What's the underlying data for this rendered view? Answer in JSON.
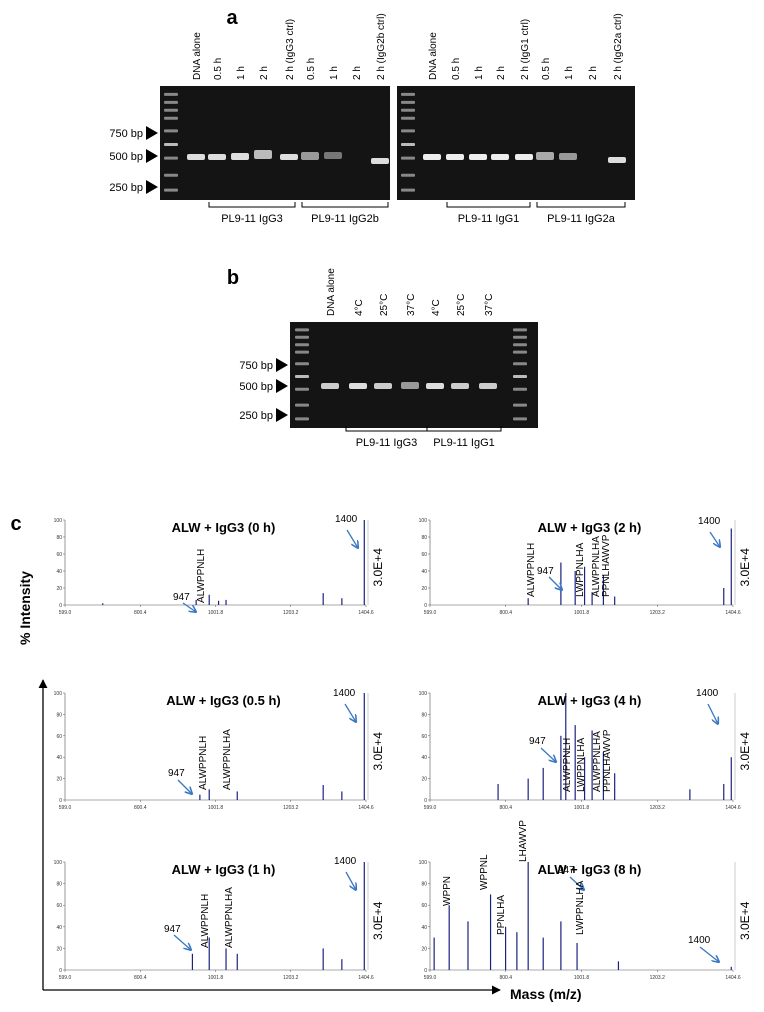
{
  "panel_a": {
    "label": "a",
    "size_markers": [
      "750 bp",
      "500 bp",
      "250 bp"
    ],
    "gels": [
      {
        "lanes": [
          "DNA alone",
          "0.5 h",
          "1 h",
          "2 h",
          "2 h (IgG3 ctrl)",
          "0.5 h",
          "1 h",
          "2 h",
          "2 h (IgG2b ctrl)"
        ],
        "groups": [
          "PL9-11  IgG3",
          "PL9-11  IgG2b"
        ]
      },
      {
        "lanes": [
          "DNA alone",
          "0.5 h",
          "1 h",
          "2 h",
          "2 h (IgG1 ctrl)",
          "0.5 h",
          "1 h",
          "2 h",
          "2 h (IgG2a ctrl)"
        ],
        "groups": [
          "PL9-11  IgG1",
          "PL9-11  IgG2a"
        ]
      }
    ]
  },
  "panel_b": {
    "label": "b",
    "size_markers": [
      "750 bp",
      "500 bp",
      "250 bp"
    ],
    "lanes": [
      "DNA alone",
      "4°C",
      "25°C",
      "37°C",
      "4°C",
      "25°C",
      "37°C"
    ],
    "groups": [
      "PL9-11  IgG3",
      "PL9-11  IgG1"
    ]
  },
  "panel_c": {
    "label": "c",
    "y_label": "% Intensity",
    "x_label": "Mass (m/z)",
    "spectra": [
      {
        "title": "ALW + IgG3 (0 h)",
        "scale": "3.0E+4",
        "annotations": [
          "1400",
          "947",
          "ALWPPNLH"
        ],
        "xlim": [
          599,
          1404.6
        ],
        "ylim": [
          0,
          100
        ],
        "xticks": [
          {
            "value": 599,
            "label": "599.0"
          },
          800.4,
          1001.8,
          1203.2,
          1404.6
        ],
        "yticks": [
          0,
          20,
          40,
          60,
          80,
          100
        ],
        "x": [
          700,
          950,
          985,
          1010,
          1030,
          1290,
          1340,
          1400
        ],
        "values": [
          2,
          6,
          12,
          5,
          6,
          14,
          8,
          100
        ]
      },
      {
        "title": "ALW + IgG3 (2 h)",
        "scale": "3.0E+4",
        "annotations": [
          "1400",
          "ALWPPNLH",
          "947",
          "LWPPNLHA",
          "ALWPPNLHA",
          "PPNLHAWVP"
        ],
        "xlim": [
          599,
          1404.6
        ],
        "ylim": [
          0,
          100
        ],
        "xticks": [
          {
            "value": 599,
            "label": "599.0"
          },
          800.4,
          1001.8,
          1203.2,
          1404.6
        ],
        "yticks": [
          0,
          20,
          40,
          60,
          80,
          100
        ],
        "x": [
          860,
          947,
          985,
          1010,
          1030,
          1060,
          1090,
          1380,
          1400
        ],
        "values": [
          8,
          50,
          40,
          45,
          15,
          35,
          10,
          20,
          90
        ]
      },
      {
        "title": "ALW + IgG3 (0.5 h)",
        "scale": "3.0E+4",
        "annotations": [
          "1400",
          "947",
          "ALWPPNLH",
          "ALWPPNLHA"
        ],
        "xlim": [
          599,
          1404.6
        ],
        "ylim": [
          0,
          100
        ],
        "xticks": [
          {
            "value": 599,
            "label": "599.0"
          },
          800.4,
          1001.8,
          1203.2,
          1404.6
        ],
        "yticks": [
          0,
          20,
          40,
          60,
          80,
          100
        ],
        "x": [
          960,
          985,
          1060,
          1290,
          1340,
          1400
        ],
        "values": [
          5,
          10,
          8,
          14,
          8,
          100
        ]
      },
      {
        "title": "ALW + IgG3 (4 h)",
        "scale": "3.0E+4",
        "annotations": [
          "1400",
          "947",
          "ALWPPNLH",
          "LWPPNLHA",
          "ALWPPNLHA",
          "PPNLHAWVP"
        ],
        "xlim": [
          599,
          1404.6
        ],
        "ylim": [
          0,
          100
        ],
        "xticks": [
          {
            "value": 599,
            "label": "599.0"
          },
          800.4,
          1001.8,
          1203.2,
          1404.6
        ],
        "yticks": [
          0,
          20,
          40,
          60,
          80,
          100
        ],
        "x": [
          780,
          860,
          900,
          947,
          960,
          985,
          1010,
          1030,
          1060,
          1090,
          1290,
          1380,
          1400
        ],
        "values": [
          15,
          20,
          30,
          60,
          100,
          70,
          40,
          65,
          45,
          25,
          10,
          15,
          40
        ]
      },
      {
        "title": "ALW + IgG3 (1 h)",
        "scale": "3.0E+4",
        "annotations": [
          "1400",
          "947",
          "ALWPPNLH",
          "ALWPPNLHA"
        ],
        "xlim": [
          599,
          1404.6
        ],
        "ylim": [
          0,
          100
        ],
        "xticks": [
          {
            "value": 599,
            "label": "599.0"
          },
          800.4,
          1001.8,
          1203.2,
          1404.6
        ],
        "yticks": [
          0,
          20,
          40,
          60,
          80,
          100
        ],
        "x": [
          940,
          985,
          1030,
          1060,
          1290,
          1340,
          1400
        ],
        "values": [
          15,
          30,
          20,
          15,
          20,
          10,
          100
        ]
      },
      {
        "title": "ALW + IgG3 (8 h)",
        "scale": "3.0E+4",
        "annotations": [
          "WPPN",
          "WPPNL",
          "PPNLHA",
          "LHAWVP",
          "947",
          "LWPPNLHA",
          "1400"
        ],
        "xlim": [
          599,
          1404.6
        ],
        "ylim": [
          0,
          100
        ],
        "xticks": [
          {
            "value": 599,
            "label": "599.0"
          },
          800.4,
          1001.8,
          1203.2,
          1404.6
        ],
        "yticks": [
          0,
          20,
          40,
          60,
          80,
          100
        ],
        "x": [
          610,
          650,
          700,
          760,
          800,
          830,
          860,
          900,
          947,
          990,
          1100,
          1400
        ],
        "values": [
          30,
          60,
          45,
          70,
          40,
          35,
          100,
          30,
          45,
          25,
          8,
          3
        ]
      }
    ]
  }
}
